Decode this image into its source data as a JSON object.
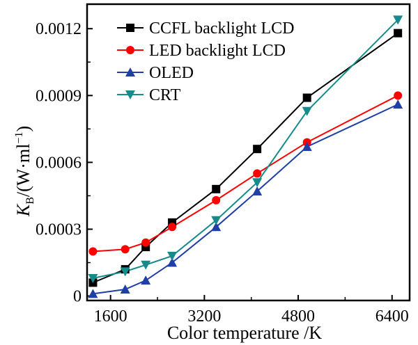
{
  "chart_data": {
    "type": "line",
    "xlabel": "Color temperature /K",
    "ylabel_main": "K",
    "ylabel_sub": "B",
    "ylabel_unit": "/(W·ml",
    "ylabel_exp": "−1",
    "ylabel_close": ")",
    "xlim": [
      1200,
      6700
    ],
    "ylim": [
      -2e-05,
      0.00131
    ],
    "xticks": [
      1600,
      3200,
      4800,
      6400
    ],
    "xtick_labels": [
      "1600",
      "3200",
      "4800",
      "6400"
    ],
    "yticks": [
      0,
      0.0003,
      0.0006,
      0.0009,
      0.0012
    ],
    "ytick_labels": [
      "0",
      "0.0003",
      "0.0006",
      "0.0009",
      "0.0012"
    ],
    "legend_position": "top-left",
    "series": [
      {
        "name": "CCFL backlight LCD",
        "color": "#000000",
        "marker": "square",
        "x": [
          1300,
          1850,
          2200,
          2650,
          3400,
          4100,
          4950,
          6500
        ],
        "y": [
          6e-05,
          0.00012,
          0.00022,
          0.00033,
          0.00048,
          0.00066,
          0.00089,
          0.00118
        ]
      },
      {
        "name": "LED backlight LCD",
        "color": "#ff0000",
        "marker": "circle",
        "x": [
          1300,
          1850,
          2200,
          2650,
          3400,
          4100,
          4950,
          6500
        ],
        "y": [
          0.0002,
          0.00021,
          0.00024,
          0.00031,
          0.00043,
          0.00055,
          0.00069,
          0.0009
        ]
      },
      {
        "name": "OLED",
        "color": "#1f3fa6",
        "marker": "triangle-up",
        "x": [
          1300,
          1850,
          2200,
          2650,
          3400,
          4100,
          4950,
          6500
        ],
        "y": [
          1e-05,
          3e-05,
          7e-05,
          0.00015,
          0.00031,
          0.00047,
          0.00067,
          0.00086
        ]
      },
      {
        "name": "CRT",
        "color": "#178b8b",
        "marker": "triangle-down",
        "x": [
          1300,
          1850,
          2200,
          2650,
          3400,
          4100,
          4950,
          6500
        ],
        "y": [
          8e-05,
          0.00011,
          0.00014,
          0.00018,
          0.00034,
          0.00051,
          0.00083,
          0.00124
        ]
      }
    ]
  }
}
